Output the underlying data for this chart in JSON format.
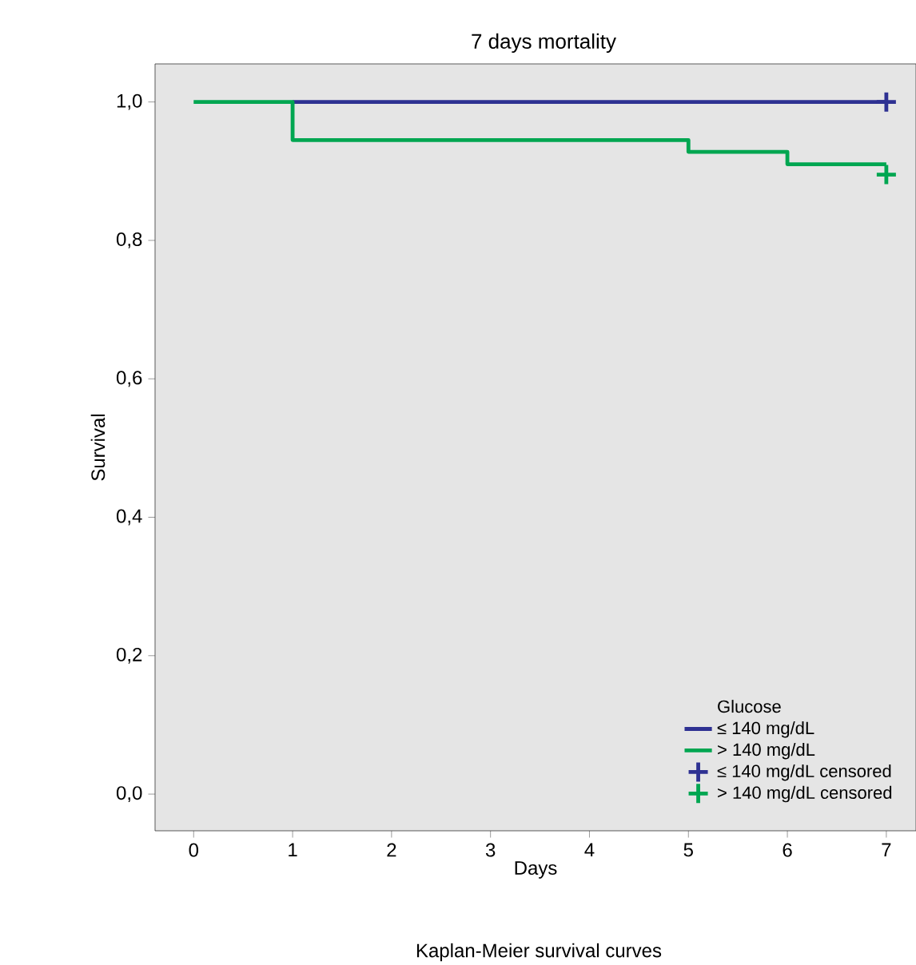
{
  "chart_data": {
    "type": "step",
    "title": "7 days mortality",
    "xlabel": "Days",
    "ylabel": "Survival",
    "annotations": [
      "Kaplan-Meier survival curves"
    ],
    "legend_title": "Glucose",
    "legend": "bottom right",
    "grid": false,
    "x": [
      0,
      1,
      5,
      6,
      7
    ],
    "series": [
      {
        "name": "≤ 140 mg/dL",
        "color": "#2e3192",
        "values": [
          null,
          1.0,
          1.0,
          1.0,
          1.0
        ]
      },
      {
        "name": "> 140 mg/dL",
        "color": "#00a651",
        "values": [
          1.0,
          0.945,
          0.928,
          0.91,
          0.91
        ]
      },
      {
        "name": "≤ 140 mg/dL censored",
        "type": "scatter",
        "marker": "cross",
        "color": "#2e3192",
        "x": [
          7
        ],
        "values": [
          1.0
        ]
      },
      {
        "name": "> 140 mg/dL censored",
        "type": "scatter",
        "marker": "cross",
        "color": "#00a651",
        "x": [
          7
        ],
        "values": [
          0.895
        ]
      }
    ],
    "xlim": [
      -0.39,
      7.3
    ],
    "ylim": [
      -0.053,
      1.055
    ],
    "xticks": [
      0,
      1,
      2,
      3,
      4,
      5,
      6,
      7
    ],
    "yticks": [
      {
        "value": 0,
        "label": "0,0"
      },
      {
        "value": 0.2,
        "label": "0,2"
      },
      {
        "value": 0.4,
        "label": "0,4"
      },
      {
        "value": 0.6,
        "label": "0,6"
      },
      {
        "value": 0.8,
        "label": "0,8"
      },
      {
        "value": 1.0,
        "label": "1,0"
      }
    ]
  }
}
